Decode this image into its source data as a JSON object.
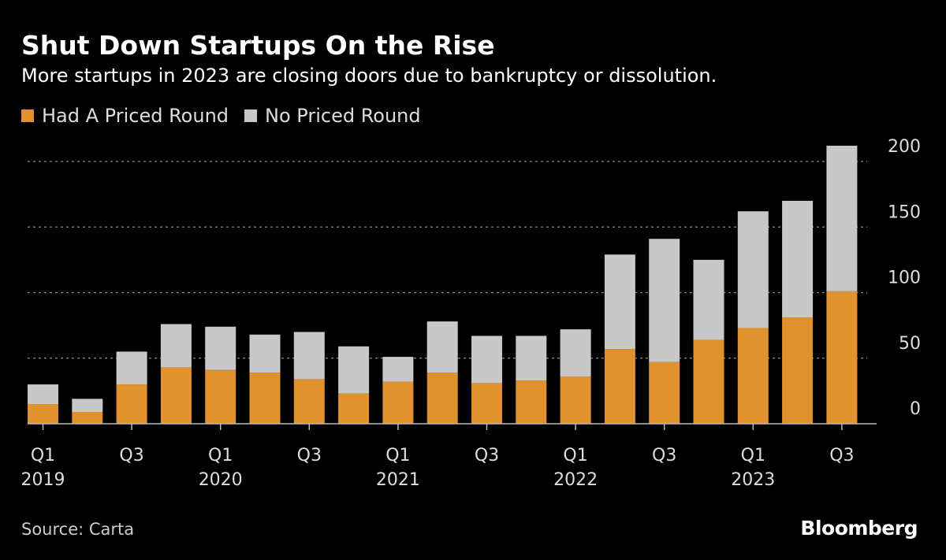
{
  "header": {
    "title": "Shut Down Startups On the Rise",
    "subtitle": "More startups in 2023 are closing doors due to bankruptcy or dissolution."
  },
  "footer": {
    "source": "Source: Carta",
    "brand": "Bloomberg"
  },
  "colors": {
    "priced": "#e0922f",
    "unpriced": "#c8c8c8",
    "grid": "#8a8a8a",
    "background": "#000000"
  },
  "chart_data": {
    "type": "bar",
    "stacked": true,
    "categories": [
      "Q1 2019",
      "Q2 2019",
      "Q3 2019",
      "Q4 2019",
      "Q1 2020",
      "Q2 2020",
      "Q3 2020",
      "Q4 2020",
      "Q1 2021",
      "Q2 2021",
      "Q3 2021",
      "Q4 2021",
      "Q1 2022",
      "Q2 2022",
      "Q3 2022",
      "Q4 2022",
      "Q1 2023",
      "Q2 2023",
      "Q3 2023"
    ],
    "tick_labels": [
      {
        "index": 0,
        "quarter": "Q1",
        "year": "2019"
      },
      {
        "index": 2,
        "quarter": "Q3",
        "year": ""
      },
      {
        "index": 4,
        "quarter": "Q1",
        "year": "2020"
      },
      {
        "index": 6,
        "quarter": "Q3",
        "year": ""
      },
      {
        "index": 8,
        "quarter": "Q1",
        "year": "2021"
      },
      {
        "index": 10,
        "quarter": "Q3",
        "year": ""
      },
      {
        "index": 12,
        "quarter": "Q1",
        "year": "2022"
      },
      {
        "index": 14,
        "quarter": "Q3",
        "year": ""
      },
      {
        "index": 16,
        "quarter": "Q1",
        "year": "2023"
      },
      {
        "index": 18,
        "quarter": "Q3",
        "year": ""
      }
    ],
    "series": [
      {
        "name": "Had A Priced Round",
        "color": "#e0922f",
        "values": [
          15,
          9,
          30,
          43,
          41,
          39,
          34,
          23,
          32,
          39,
          31,
          33,
          36,
          57,
          47,
          64,
          73,
          81,
          101
        ]
      },
      {
        "name": "No Priced Round",
        "color": "#c8c8c8",
        "values": [
          15,
          10,
          25,
          33,
          33,
          29,
          36,
          36,
          19,
          39,
          36,
          34,
          36,
          72,
          94,
          61,
          89,
          89,
          111
        ]
      }
    ],
    "ylim": [
      0,
      200
    ],
    "yticks": [
      0,
      50,
      100,
      150,
      200
    ],
    "y_axis_position": "right",
    "grid": true,
    "legend_position": "top-left"
  }
}
